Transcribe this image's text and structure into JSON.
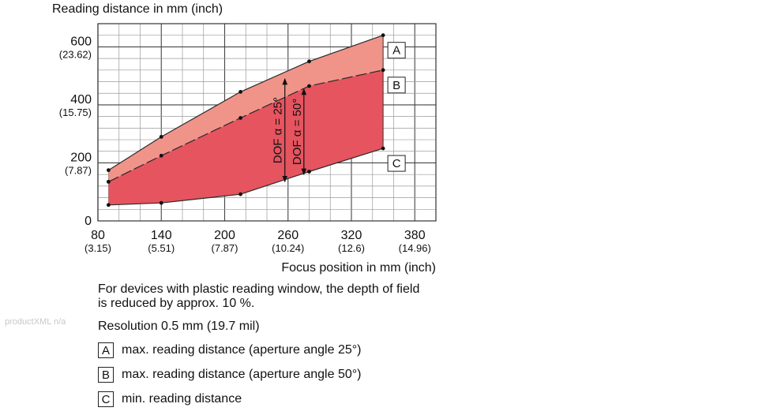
{
  "chart_data": {
    "type": "area",
    "title": "Reading distance in mm (inch)",
    "xlabel": "Focus position in mm (inch)",
    "ylabel": "Reading distance in mm (inch)",
    "xlim": [
      80,
      400
    ],
    "ylim": [
      0,
      680
    ],
    "x_ticks": [
      {
        "value": 80,
        "label": "80",
        "sublabel": "(3.15)"
      },
      {
        "value": 140,
        "label": "140",
        "sublabel": "(5.51)"
      },
      {
        "value": 200,
        "label": "200",
        "sublabel": "(7.87)"
      },
      {
        "value": 260,
        "label": "260",
        "sublabel": "(10.24)"
      },
      {
        "value": 320,
        "label": "320",
        "sublabel": "(12.6)"
      },
      {
        "value": 380,
        "label": "380",
        "sublabel": "(14.96)"
      }
    ],
    "y_ticks": [
      {
        "value": 0,
        "label": "0",
        "sublabel": ""
      },
      {
        "value": 200,
        "label": "200",
        "sublabel": "(7.87)"
      },
      {
        "value": 400,
        "label": "400",
        "sublabel": "(15.75)"
      },
      {
        "value": 600,
        "label": "600",
        "sublabel": "(23.62)"
      }
    ],
    "grid": true,
    "series": [
      {
        "name": "A",
        "line": "solid",
        "x": [
          90,
          140,
          215,
          280,
          350
        ],
        "y": [
          175,
          290,
          445,
          550,
          640
        ]
      },
      {
        "name": "B",
        "line": "dashed",
        "x": [
          90,
          140,
          215,
          280,
          350
        ],
        "y": [
          135,
          225,
          355,
          465,
          520
        ]
      },
      {
        "name": "C",
        "line": "solid",
        "x": [
          90,
          140,
          215,
          280,
          350
        ],
        "y": [
          55,
          62,
          92,
          170,
          250
        ]
      }
    ],
    "fill_colors": {
      "between_A_B": "#f0948a",
      "between_B_C": "#e5545f"
    },
    "annotations": [
      {
        "text": "DOF α = 25°",
        "x": 257,
        "from": 490,
        "to": 135
      },
      {
        "text": "DOF α = 50°",
        "x": 275,
        "from": 455,
        "to": 160
      }
    ]
  },
  "note": "For devices with plastic reading window, the depth of field is reduced by approx. 10 %.",
  "resolution": "Resolution 0.5 mm (19.7 mil)",
  "watermark": "productXML n/a",
  "legend": [
    {
      "key": "A",
      "label": "max. reading distance (aperture angle 25°)"
    },
    {
      "key": "B",
      "label": "max. reading distance (aperture angle 50°)"
    },
    {
      "key": "C",
      "label": "min. reading distance"
    }
  ]
}
